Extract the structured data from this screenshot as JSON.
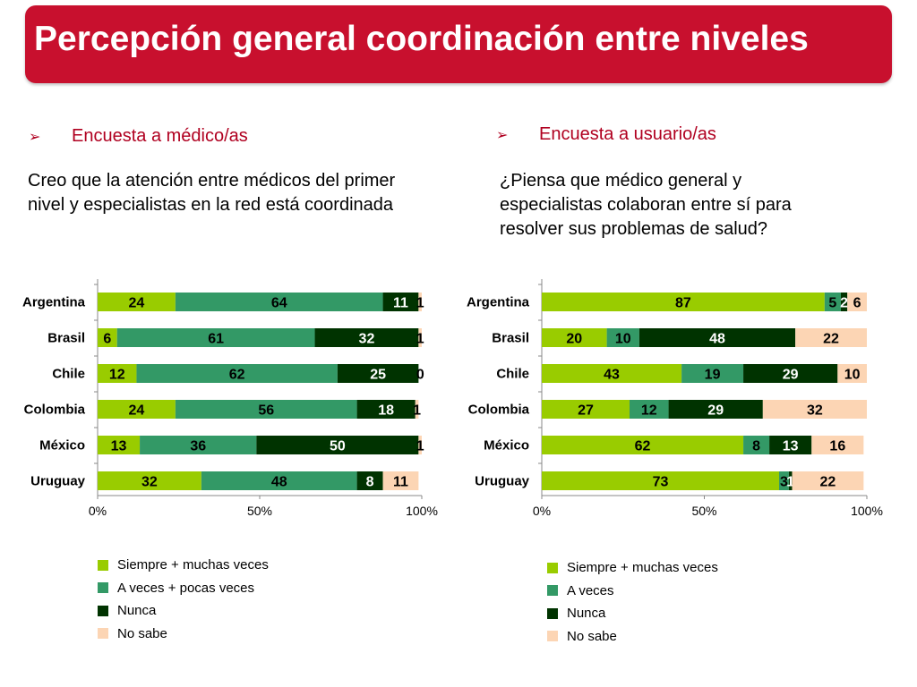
{
  "title": "Percepción general coordinación entre niveles",
  "left": {
    "heading": "Encuesta a médico/as",
    "question_lines": [
      "Creo que la atención entre médicos del primer",
      "nivel y especialistas en la red está coordinada"
    ]
  },
  "right": {
    "heading": "Encuesta a usuario/as",
    "question_lines": [
      "¿Piensa que médico general y",
      "especialistas colaboran entre sí para",
      "resolver sus problemas de salud?"
    ]
  },
  "colors": {
    "title_bg": "#c8102e",
    "heading_text": "#b00020",
    "siempre": "#99cc00",
    "aveces": "#339966",
    "nunca": "#003300",
    "nosabe": "#fcd5b4"
  },
  "chart_data": [
    {
      "type": "bar",
      "orientation": "horizontal",
      "stacked": "100%",
      "categories": [
        "Argentina",
        "Brasil",
        "Chile",
        "Colombia",
        "México",
        "Uruguay"
      ],
      "series": [
        {
          "name": "Siempre + muchas veces",
          "color": "#99cc00",
          "values": [
            24,
            6,
            12,
            24,
            13,
            32
          ]
        },
        {
          "name": "A veces + pocas veces",
          "color": "#339966",
          "values": [
            64,
            61,
            62,
            56,
            36,
            48
          ]
        },
        {
          "name": "Nunca",
          "color": "#003300",
          "values": [
            11,
            32,
            25,
            18,
            50,
            8
          ]
        },
        {
          "name": "No sabe",
          "color": "#fcd5b4",
          "values": [
            1,
            1,
            0,
            1,
            1,
            11
          ]
        }
      ],
      "xticks": [
        "0%",
        "50%",
        "100%"
      ],
      "xlim": [
        0,
        100
      ],
      "legend": "bottom"
    },
    {
      "type": "bar",
      "orientation": "horizontal",
      "stacked": "100%",
      "categories": [
        "Argentina",
        "Brasil",
        "Chile",
        "Colombia",
        "México",
        "Uruguay"
      ],
      "series": [
        {
          "name": "Siempre + muchas veces",
          "color": "#99cc00",
          "values": [
            87,
            20,
            43,
            27,
            62,
            73
          ]
        },
        {
          "name": "A veces",
          "color": "#339966",
          "values": [
            5,
            10,
            19,
            12,
            8,
            3
          ]
        },
        {
          "name": "Nunca",
          "color": "#003300",
          "values": [
            2,
            48,
            29,
            29,
            13,
            1
          ]
        },
        {
          "name": "No sabe",
          "color": "#fcd5b4",
          "values": [
            6,
            22,
            10,
            32,
            16,
            22
          ]
        }
      ],
      "xticks": [
        "0%",
        "50%",
        "100%"
      ],
      "xlim": [
        0,
        100
      ],
      "legend": "bottom"
    }
  ]
}
